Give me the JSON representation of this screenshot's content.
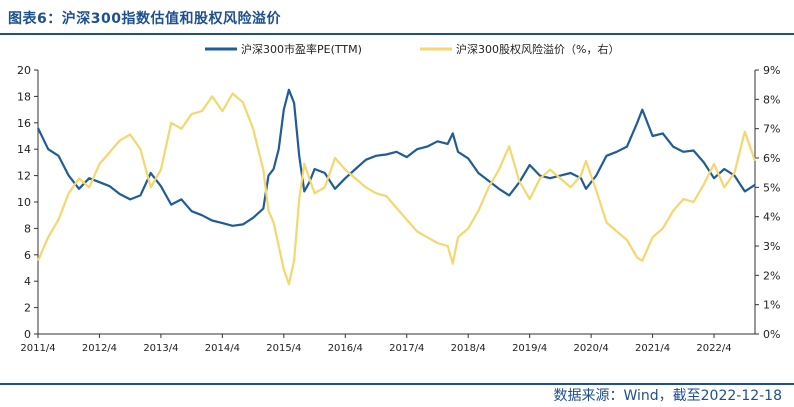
{
  "header": {
    "title": "图表6：沪深300指数估值和股权风险溢价"
  },
  "footer": {
    "source": "数据来源：Wind，截至2022-12-18"
  },
  "chart_data": {
    "type": "line",
    "title": "",
    "x_ticks": [
      "2011/4",
      "2012/4",
      "2013/4",
      "2014/4",
      "2015/4",
      "2016/4",
      "2017/4",
      "2018/4",
      "2019/4",
      "2020/4",
      "2021/4",
      "2022/4"
    ],
    "x_range": [
      "2011-04",
      "2022-12"
    ],
    "y_left": {
      "ticks": [
        "0",
        "2",
        "4",
        "6",
        "8",
        "10",
        "12",
        "14",
        "16",
        "18",
        "20"
      ],
      "range": [
        0,
        20
      ]
    },
    "y_right": {
      "ticks": [
        "0%",
        "1%",
        "2%",
        "3%",
        "4%",
        "5%",
        "6%",
        "7%",
        "8%",
        "9%"
      ],
      "range": [
        0,
        9
      ]
    },
    "legend_position": "top",
    "grid": false,
    "series": [
      {
        "name": "沪深300市盈率PE(TTM)",
        "axis": "left",
        "color": "#1f5c99",
        "points": [
          [
            "2011-04",
            15.6
          ],
          [
            "2011-06",
            14.0
          ],
          [
            "2011-08",
            13.5
          ],
          [
            "2011-10",
            12.0
          ],
          [
            "2011-12",
            11.0
          ],
          [
            "2012-02",
            11.8
          ],
          [
            "2012-04",
            11.5
          ],
          [
            "2012-06",
            11.2
          ],
          [
            "2012-08",
            10.6
          ],
          [
            "2012-10",
            10.2
          ],
          [
            "2012-12",
            10.5
          ],
          [
            "2013-02",
            12.2
          ],
          [
            "2013-04",
            11.2
          ],
          [
            "2013-06",
            9.8
          ],
          [
            "2013-08",
            10.2
          ],
          [
            "2013-10",
            9.3
          ],
          [
            "2013-12",
            9.0
          ],
          [
            "2014-02",
            8.6
          ],
          [
            "2014-04",
            8.4
          ],
          [
            "2014-06",
            8.2
          ],
          [
            "2014-08",
            8.3
          ],
          [
            "2014-10",
            8.8
          ],
          [
            "2014-12",
            9.5
          ],
          [
            "2015-01",
            12.0
          ],
          [
            "2015-02",
            12.5
          ],
          [
            "2015-03",
            14.0
          ],
          [
            "2015-04",
            17.0
          ],
          [
            "2015-05",
            18.5
          ],
          [
            "2015-06",
            17.5
          ],
          [
            "2015-07",
            13.5
          ],
          [
            "2015-08",
            10.8
          ],
          [
            "2015-09",
            11.5
          ],
          [
            "2015-10",
            12.5
          ],
          [
            "2015-12",
            12.2
          ],
          [
            "2016-02",
            11.0
          ],
          [
            "2016-04",
            11.8
          ],
          [
            "2016-06",
            12.5
          ],
          [
            "2016-08",
            13.2
          ],
          [
            "2016-10",
            13.5
          ],
          [
            "2016-12",
            13.6
          ],
          [
            "2017-02",
            13.8
          ],
          [
            "2017-04",
            13.4
          ],
          [
            "2017-06",
            14.0
          ],
          [
            "2017-08",
            14.2
          ],
          [
            "2017-10",
            14.6
          ],
          [
            "2017-12",
            14.4
          ],
          [
            "2018-01",
            15.2
          ],
          [
            "2018-02",
            13.8
          ],
          [
            "2018-04",
            13.3
          ],
          [
            "2018-06",
            12.2
          ],
          [
            "2018-08",
            11.6
          ],
          [
            "2018-10",
            11.0
          ],
          [
            "2018-12",
            10.5
          ],
          [
            "2019-02",
            11.5
          ],
          [
            "2019-04",
            12.8
          ],
          [
            "2019-06",
            12.0
          ],
          [
            "2019-08",
            11.8
          ],
          [
            "2019-10",
            12.0
          ],
          [
            "2019-12",
            12.2
          ],
          [
            "2020-02",
            11.8
          ],
          [
            "2020-03",
            11.0
          ],
          [
            "2020-05",
            12.0
          ],
          [
            "2020-07",
            13.5
          ],
          [
            "2020-09",
            13.8
          ],
          [
            "2020-11",
            14.2
          ],
          [
            "2021-01",
            16.0
          ],
          [
            "2021-02",
            17.0
          ],
          [
            "2021-04",
            15.0
          ],
          [
            "2021-06",
            15.2
          ],
          [
            "2021-08",
            14.2
          ],
          [
            "2021-10",
            13.8
          ],
          [
            "2021-12",
            13.9
          ],
          [
            "2022-02",
            13.0
          ],
          [
            "2022-04",
            11.8
          ],
          [
            "2022-06",
            12.5
          ],
          [
            "2022-08",
            12.0
          ],
          [
            "2022-10",
            10.8
          ],
          [
            "2022-12",
            11.3
          ]
        ]
      },
      {
        "name": "沪深300股权风险溢价（%，右）",
        "axis": "right",
        "color": "#f5d76e",
        "points": [
          [
            "2011-04",
            2.5
          ],
          [
            "2011-06",
            3.3
          ],
          [
            "2011-08",
            3.9
          ],
          [
            "2011-10",
            4.8
          ],
          [
            "2011-12",
            5.3
          ],
          [
            "2012-02",
            5.0
          ],
          [
            "2012-04",
            5.8
          ],
          [
            "2012-06",
            6.2
          ],
          [
            "2012-08",
            6.6
          ],
          [
            "2012-10",
            6.8
          ],
          [
            "2012-12",
            6.3
          ],
          [
            "2013-02",
            5.0
          ],
          [
            "2013-04",
            5.6
          ],
          [
            "2013-06",
            7.2
          ],
          [
            "2013-08",
            7.0
          ],
          [
            "2013-10",
            7.5
          ],
          [
            "2013-12",
            7.6
          ],
          [
            "2014-02",
            8.1
          ],
          [
            "2014-04",
            7.6
          ],
          [
            "2014-06",
            8.2
          ],
          [
            "2014-08",
            7.9
          ],
          [
            "2014-10",
            7.0
          ],
          [
            "2014-12",
            5.6
          ],
          [
            "2015-01",
            4.2
          ],
          [
            "2015-02",
            3.8
          ],
          [
            "2015-03",
            3.0
          ],
          [
            "2015-04",
            2.2
          ],
          [
            "2015-05",
            1.7
          ],
          [
            "2015-06",
            2.5
          ],
          [
            "2015-07",
            4.6
          ],
          [
            "2015-08",
            5.8
          ],
          [
            "2015-09",
            5.3
          ],
          [
            "2015-10",
            4.8
          ],
          [
            "2015-12",
            5.0
          ],
          [
            "2016-02",
            6.0
          ],
          [
            "2016-04",
            5.6
          ],
          [
            "2016-06",
            5.3
          ],
          [
            "2016-08",
            5.0
          ],
          [
            "2016-10",
            4.8
          ],
          [
            "2016-12",
            4.7
          ],
          [
            "2017-02",
            4.3
          ],
          [
            "2017-04",
            3.9
          ],
          [
            "2017-06",
            3.5
          ],
          [
            "2017-08",
            3.3
          ],
          [
            "2017-10",
            3.1
          ],
          [
            "2017-12",
            3.0
          ],
          [
            "2018-01",
            2.4
          ],
          [
            "2018-02",
            3.3
          ],
          [
            "2018-04",
            3.6
          ],
          [
            "2018-06",
            4.2
          ],
          [
            "2018-08",
            5.0
          ],
          [
            "2018-10",
            5.6
          ],
          [
            "2018-12",
            6.4
          ],
          [
            "2019-02",
            5.2
          ],
          [
            "2019-04",
            4.6
          ],
          [
            "2019-06",
            5.3
          ],
          [
            "2019-08",
            5.6
          ],
          [
            "2019-10",
            5.3
          ],
          [
            "2019-12",
            5.0
          ],
          [
            "2020-02",
            5.4
          ],
          [
            "2020-03",
            5.9
          ],
          [
            "2020-05",
            4.9
          ],
          [
            "2020-07",
            3.8
          ],
          [
            "2020-09",
            3.5
          ],
          [
            "2020-11",
            3.2
          ],
          [
            "2021-01",
            2.6
          ],
          [
            "2021-02",
            2.5
          ],
          [
            "2021-04",
            3.3
          ],
          [
            "2021-06",
            3.6
          ],
          [
            "2021-08",
            4.2
          ],
          [
            "2021-10",
            4.6
          ],
          [
            "2021-12",
            4.5
          ],
          [
            "2022-02",
            5.1
          ],
          [
            "2022-04",
            5.8
          ],
          [
            "2022-06",
            5.0
          ],
          [
            "2022-08",
            5.5
          ],
          [
            "2022-10",
            6.9
          ],
          [
            "2022-12",
            5.9
          ]
        ]
      }
    ]
  }
}
